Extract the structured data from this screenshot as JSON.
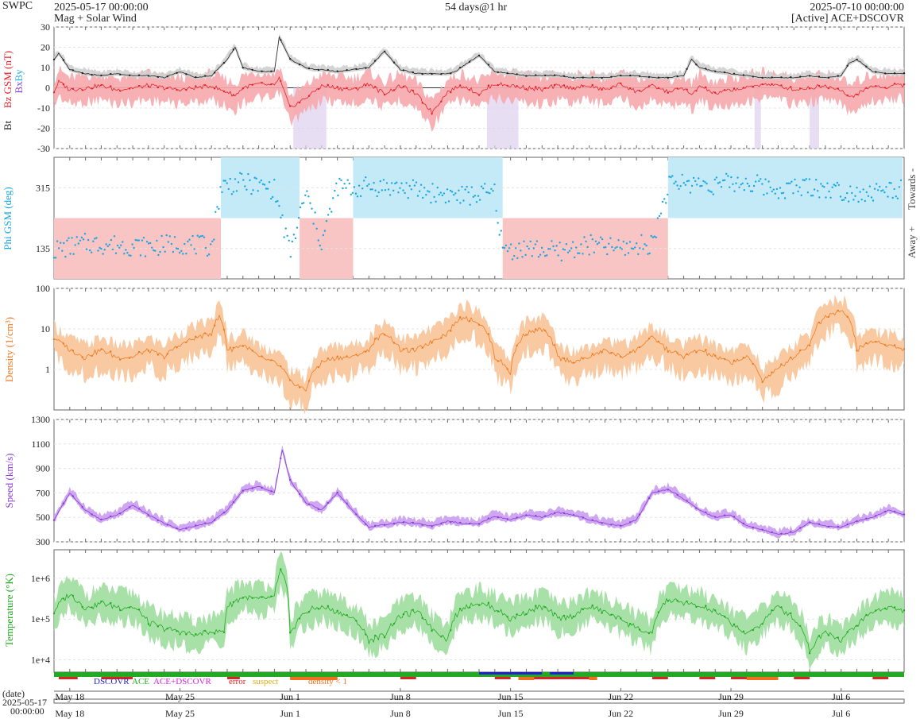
{
  "header": {
    "brand": "SWPC",
    "start_time": "2025-05-17 00:00:00",
    "product": "Mag + Solar Wind",
    "span": "54 days@1 hr",
    "end_time": "2025-07-10 00:00:00",
    "source": "[Active] ACE+DSCOVR"
  },
  "colors": {
    "bt": "#222222",
    "bz": "#e8202a",
    "bz_fill": "#f6a8ac",
    "by": "#2ab0e6",
    "bx": "#8844cc",
    "phi": "#1aa6e0",
    "towards_fill": "#c4eaf8",
    "away_fill": "#f8c4c4",
    "density": "#ee7a20",
    "density_fill": "#f8c498",
    "speed": "#8a3cd6",
    "speed_fill": "#c99cf0",
    "temp": "#22aa22",
    "temp_fill": "#9ede9e",
    "dscovr": "#2222cc",
    "ace": "#22aa22",
    "ace_dscovr": "#dd22dd",
    "error": "#dd2222",
    "suspect": "#e8b010",
    "density_lt1": "#f07020"
  },
  "chart_data": [
    {
      "type": "line",
      "panel": "mag",
      "ylabel_parts": [
        "Bt",
        "Bz GSM (nT)",
        "Bx",
        "By"
      ],
      "yticks": [
        "30",
        "20",
        "10",
        "0",
        "-10",
        "-20",
        "-30"
      ],
      "ylim": [
        -30,
        30
      ],
      "xlim_days": [
        0,
        54
      ],
      "series": [
        {
          "name": "Bt",
          "x": [
            0,
            0.3,
            1,
            2,
            3,
            4,
            5,
            6,
            7,
            8,
            9,
            10,
            10.5,
            11,
            11.5,
            12,
            13,
            14,
            14.3,
            15,
            16,
            16.5,
            17,
            18,
            19,
            20,
            21,
            22,
            23,
            24,
            25,
            25.5,
            26,
            27,
            28,
            29,
            30,
            31,
            32,
            33,
            34,
            35,
            36,
            37,
            38,
            39,
            40,
            40.5,
            41,
            42,
            43,
            44,
            45,
            46,
            47,
            48,
            49,
            50,
            50.5,
            51,
            52,
            53,
            53.5,
            54
          ],
          "values": [
            14,
            17,
            9,
            7,
            6,
            7,
            6,
            6,
            5,
            8,
            5,
            6,
            10,
            14,
            20,
            10,
            8,
            8,
            25,
            14,
            10,
            9,
            9,
            8,
            9,
            10,
            18,
            9,
            7,
            7,
            7,
            8,
            11,
            16,
            8,
            7,
            6,
            6,
            6,
            5,
            5,
            5,
            6,
            6,
            5,
            5,
            6,
            14,
            10,
            8,
            7,
            6,
            5,
            5,
            5,
            6,
            5,
            6,
            12,
            14,
            8,
            7,
            7,
            7
          ]
        },
        {
          "name": "Bz GSM",
          "x": [
            0,
            0.3,
            1,
            2,
            3,
            4,
            5,
            6,
            7,
            8,
            9,
            10,
            10.5,
            11,
            11.5,
            12,
            13,
            14,
            14.3,
            15,
            16,
            16.5,
            17,
            18,
            19,
            20,
            21,
            22,
            23,
            24,
            25,
            25.5,
            26,
            27,
            28,
            29,
            30,
            31,
            32,
            33,
            34,
            35,
            36,
            37,
            38,
            39,
            40,
            40.5,
            41,
            42,
            43,
            44,
            45,
            46,
            47,
            48,
            49,
            50,
            50.5,
            51,
            52,
            53,
            53.5,
            54
          ],
          "values": [
            -2,
            3,
            -1,
            0,
            1,
            -1,
            0,
            1,
            0,
            -1,
            0,
            1,
            -1,
            -2,
            -4,
            0,
            2,
            1,
            5,
            -10,
            -5,
            -2,
            1,
            0,
            -1,
            2,
            -3,
            1,
            -3,
            -12,
            -2,
            0,
            1,
            -3,
            2,
            1,
            0,
            -1,
            1,
            0,
            1,
            -1,
            2,
            -2,
            1,
            -2,
            0,
            -4,
            1,
            -3,
            -1,
            0,
            2,
            1,
            -1,
            0,
            1,
            -1,
            -5,
            -3,
            1,
            0,
            2,
            1
          ]
        }
      ]
    },
    {
      "type": "scatter",
      "panel": "phi",
      "ylabel": "Phi GSM (deg)",
      "yticks": [
        "315",
        "135"
      ],
      "ylim": [
        45,
        405
      ],
      "right_labels": [
        "Towards -",
        "Away +"
      ],
      "sector_segments": [
        {
          "label": "Away +",
          "start_day": 0,
          "end_day": 10.6
        },
        {
          "label": "Towards -",
          "start_day": 10.6,
          "end_day": 15.6
        },
        {
          "label": "Away +",
          "start_day": 15.6,
          "end_day": 19.0
        },
        {
          "label": "Towards -",
          "start_day": 19.0,
          "end_day": 28.5
        },
        {
          "label": "Away +",
          "start_day": 28.5,
          "end_day": 39.0
        },
        {
          "label": "Towards -",
          "start_day": 39.0,
          "end_day": 53.9
        }
      ],
      "series": [
        {
          "name": "Phi GSM",
          "x": [
            0,
            2,
            4,
            6,
            8,
            10,
            10.6,
            12,
            14,
            15,
            16,
            17,
            18,
            19,
            20,
            22,
            24,
            26,
            28,
            28.5,
            30,
            32,
            34,
            36,
            38,
            39,
            40,
            42,
            44,
            46,
            48,
            50,
            52,
            53.5
          ],
          "values": [
            130,
            150,
            145,
            140,
            150,
            140,
            320,
            330,
            310,
            120,
            300,
            150,
            320,
            310,
            320,
            315,
            300,
            290,
            300,
            130,
            135,
            125,
            145,
            135,
            150,
            320,
            330,
            325,
            330,
            310,
            320,
            305,
            300,
            310
          ]
        }
      ]
    },
    {
      "type": "line",
      "panel": "density",
      "ylabel": "Density (1/cm³)",
      "yscale": "log",
      "yticks": [
        "100",
        "10",
        "1"
      ],
      "ylim": [
        0.1,
        100
      ],
      "series": [
        {
          "name": "Density",
          "x": [
            0,
            1,
            2,
            3,
            4,
            5,
            6,
            7,
            8,
            9,
            10,
            10.5,
            11,
            12,
            13,
            14,
            15,
            16,
            17,
            18,
            19,
            20,
            21,
            22,
            23,
            24,
            25,
            26,
            27,
            28,
            29,
            30,
            31,
            32,
            33,
            34,
            35,
            36,
            37,
            38,
            39,
            40,
            41,
            42,
            43,
            44,
            45,
            46,
            47,
            48,
            49,
            50,
            51,
            52,
            53,
            54
          ],
          "values": [
            6,
            3,
            2,
            3,
            2,
            2,
            3,
            2,
            4,
            6,
            8,
            20,
            3,
            4,
            2,
            1.5,
            0.5,
            0.3,
            1.5,
            2,
            2,
            3,
            8,
            3,
            3,
            5,
            8,
            20,
            14,
            2,
            0.8,
            8,
            10,
            2,
            1.5,
            2,
            3,
            2,
            3,
            6,
            3,
            2,
            3,
            2,
            1.5,
            2,
            0.5,
            1,
            2,
            4,
            20,
            30,
            3,
            5,
            4,
            3
          ]
        }
      ]
    },
    {
      "type": "line",
      "panel": "speed",
      "ylabel": "Speed (km/s)",
      "yticks": [
        "1300",
        "1100",
        "900",
        "700",
        "500",
        "300"
      ],
      "ylim": [
        300,
        1300
      ],
      "series": [
        {
          "name": "Speed",
          "x": [
            0,
            1,
            2,
            3,
            4,
            5,
            6,
            7,
            8,
            9,
            10,
            11,
            12,
            13,
            14,
            14.5,
            15,
            16,
            17,
            18,
            19,
            20,
            21,
            22,
            23,
            24,
            25,
            26,
            27,
            28,
            29,
            30,
            31,
            32,
            33,
            34,
            35,
            36,
            37,
            38,
            39,
            40,
            41,
            42,
            43,
            44,
            45,
            46,
            47,
            48,
            49,
            50,
            51,
            52,
            53,
            54
          ],
          "values": [
            480,
            700,
            560,
            480,
            520,
            600,
            520,
            450,
            400,
            430,
            460,
            560,
            720,
            750,
            700,
            1050,
            800,
            620,
            560,
            700,
            550,
            420,
            440,
            460,
            450,
            430,
            470,
            450,
            450,
            510,
            480,
            520,
            500,
            540,
            520,
            480,
            450,
            430,
            480,
            700,
            730,
            650,
            560,
            500,
            520,
            430,
            400,
            360,
            380,
            460,
            430,
            420,
            470,
            500,
            560,
            520
          ]
        }
      ]
    },
    {
      "type": "line",
      "panel": "temperature",
      "ylabel": "Temperature (°K)",
      "yscale": "log",
      "yticks": [
        "1e+6",
        "1e+5",
        "1e+4"
      ],
      "ylim": [
        5000,
        5000000
      ],
      "series": [
        {
          "name": "Temperature",
          "x": [
            0,
            1,
            2,
            3,
            4,
            5,
            6,
            7,
            8,
            9,
            10,
            10.8,
            11,
            12,
            13,
            14,
            14.4,
            15,
            16,
            17,
            18,
            19,
            20,
            21,
            22,
            23,
            24,
            25,
            26,
            27,
            28,
            29,
            30,
            31,
            32,
            33,
            34,
            35,
            36,
            37,
            38,
            39,
            40,
            41,
            42,
            43,
            44,
            45,
            46,
            47,
            48,
            49,
            50,
            51,
            52,
            53,
            54
          ],
          "values": [
            150000,
            400000,
            180000,
            250000,
            200000,
            200000,
            80000,
            60000,
            50000,
            40000,
            50000,
            50000,
            200000,
            350000,
            300000,
            350000,
            1500000,
            40000,
            150000,
            200000,
            150000,
            100000,
            30000,
            40000,
            120000,
            150000,
            60000,
            30000,
            200000,
            250000,
            180000,
            100000,
            150000,
            200000,
            100000,
            120000,
            200000,
            150000,
            100000,
            60000,
            40000,
            300000,
            250000,
            200000,
            150000,
            80000,
            40000,
            80000,
            200000,
            100000,
            15000,
            50000,
            30000,
            70000,
            150000,
            200000,
            150000
          ]
        }
      ]
    },
    {
      "type": "table",
      "panel": "status",
      "legend": [
        "DSCOVR",
        "ACE",
        "ACE+DSCOVR",
        "error",
        "suspect",
        "density < 1"
      ],
      "time_label": "(date)",
      "time_start": "2025-05-17",
      "time_start_clock": "00:00:00",
      "date_ticks": [
        {
          "label": "May 18",
          "day": 1
        },
        {
          "label": "May 25",
          "day": 8
        },
        {
          "label": "Jun 1",
          "day": 15
        },
        {
          "label": "Jun 8",
          "day": 22
        },
        {
          "label": "Jun 15",
          "day": 29
        },
        {
          "label": "Jun 22",
          "day": 36
        },
        {
          "label": "Jun 29",
          "day": 43
        },
        {
          "label": "Jul 6",
          "day": 50
        }
      ],
      "error_segments": [
        [
          0.3,
          1.5
        ],
        [
          3,
          5
        ],
        [
          11,
          11.8
        ],
        [
          15,
          18
        ],
        [
          22,
          23
        ],
        [
          28,
          29
        ],
        [
          30,
          34
        ],
        [
          38,
          39
        ],
        [
          41,
          42
        ],
        [
          43,
          46
        ],
        [
          47,
          48
        ],
        [
          52,
          53
        ]
      ],
      "density_lt1_segments": [
        [
          15,
          18
        ],
        [
          29.5,
          30.5
        ],
        [
          34,
          34.5
        ],
        [
          44,
          46
        ]
      ],
      "dscovr_segments": [
        [
          27,
          31
        ],
        [
          31.5,
          33
        ]
      ]
    }
  ]
}
